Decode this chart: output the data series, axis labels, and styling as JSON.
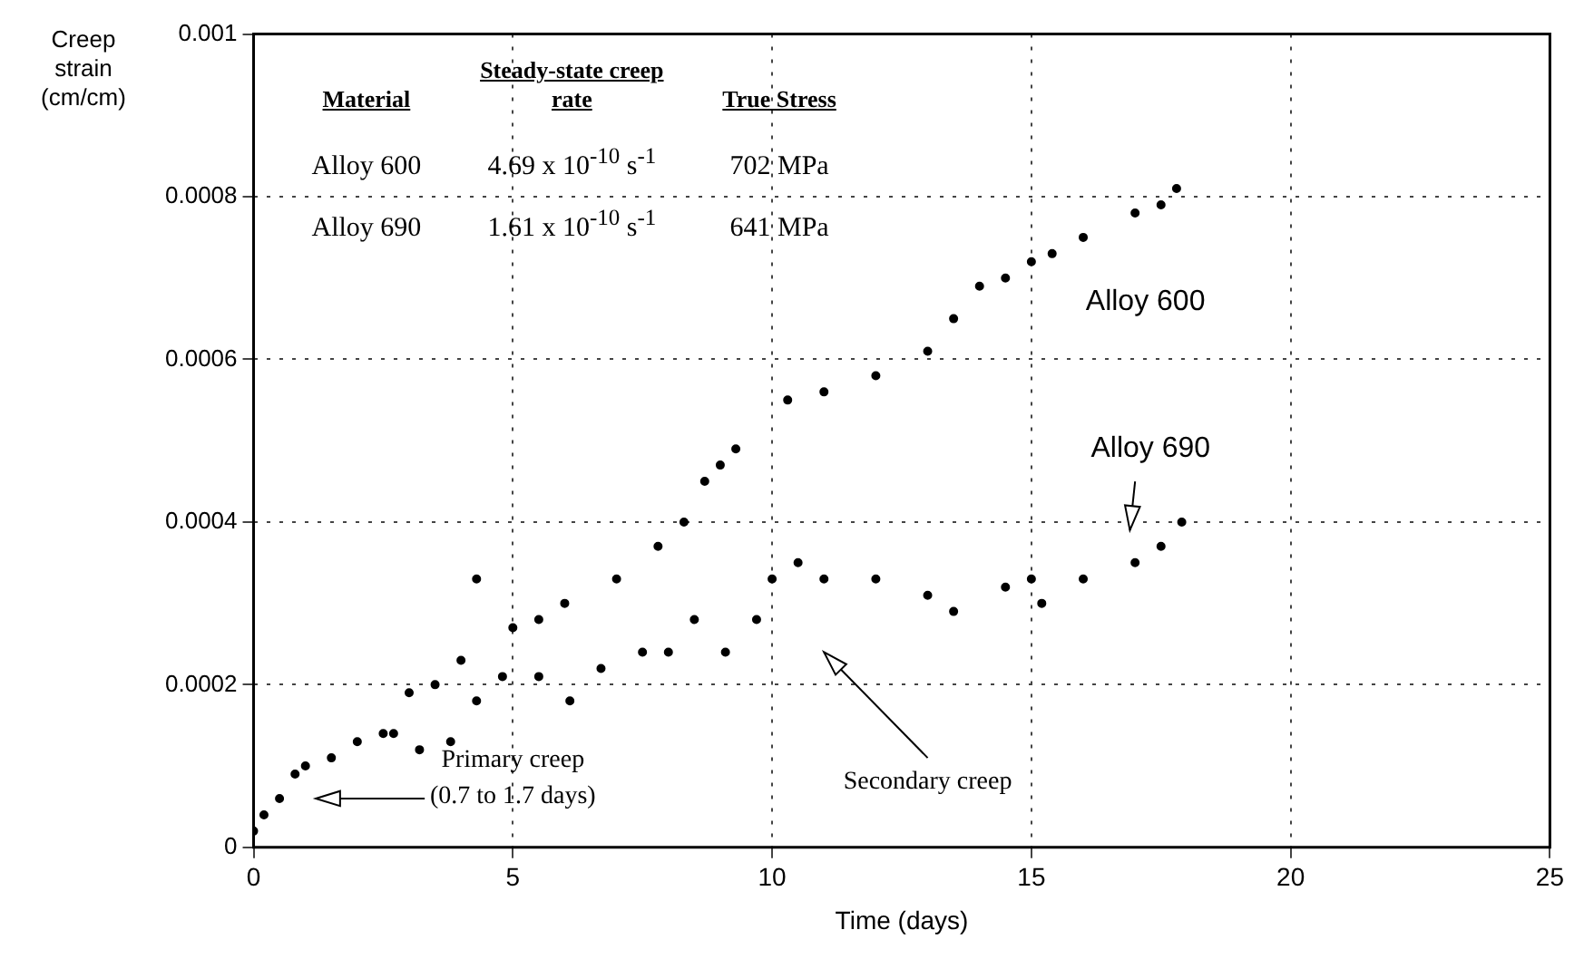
{
  "chart_data": {
    "type": "scatter",
    "xlabel": "Time (days)",
    "ylabel": "Creep strain (cm/cm)",
    "xlim": [
      0,
      25
    ],
    "xticks": [
      0,
      5,
      10,
      15,
      20,
      25
    ],
    "ylim": [
      0,
      0.001
    ],
    "yticks": [
      0,
      0.0002,
      0.0004,
      0.0006,
      0.0008,
      0.001
    ],
    "grid": true,
    "legend": false,
    "marker": "circle",
    "series": [
      {
        "name": "Alloy 600",
        "color": "#000000",
        "x": [
          0,
          0.5,
          0.8,
          1.5,
          2.5,
          3,
          3.5,
          4,
          4.3,
          5,
          5.5,
          6,
          7,
          7.8,
          8.3,
          8.7,
          9,
          9.3,
          10.3,
          11,
          12,
          13,
          13.5,
          14,
          14.5,
          15,
          15.4,
          16,
          17,
          17.5,
          17.8
        ],
        "values": [
          2e-05,
          6e-05,
          9e-05,
          0.00011,
          0.00014,
          0.00019,
          0.0002,
          0.00023,
          0.00033,
          0.00027,
          0.00028,
          0.0003,
          0.00033,
          0.00037,
          0.0004,
          0.00045,
          0.00047,
          0.00049,
          0.00055,
          0.00056,
          0.00058,
          0.00061,
          0.00065,
          0.00069,
          0.0007,
          0.00072,
          0.00073,
          0.00075,
          0.00078,
          0.00079,
          0.00081
        ]
      },
      {
        "name": "Alloy 690",
        "color": "#000000",
        "x": [
          0.2,
          1,
          2,
          2.7,
          3.2,
          3.8,
          4.3,
          4.8,
          5.5,
          6.1,
          6.7,
          7.5,
          8,
          8.5,
          9.1,
          9.7,
          10,
          10.5,
          11,
          12,
          13,
          13.5,
          14.5,
          15,
          15.2,
          16,
          17,
          17.5,
          17.9
        ],
        "values": [
          4e-05,
          0.0001,
          0.00013,
          0.00014,
          0.00012,
          0.00013,
          0.00018,
          0.00021,
          0.00021,
          0.00018,
          0.00022,
          0.00024,
          0.00024,
          0.00028,
          0.00024,
          0.00028,
          0.00033,
          0.00035,
          0.00033,
          0.00033,
          0.00031,
          0.00029,
          0.00032,
          0.00033,
          0.0003,
          0.00033,
          0.00035,
          0.00037,
          0.0004
        ]
      }
    ],
    "annotations": [
      "Material",
      "Steady-state creep rate",
      "True Stress",
      "Alloy 600",
      "4.69 x 10$^{-10}$ s$^{-1}$",
      "702 MPa",
      "Alloy 690",
      "1.61 x 10$^{-10}$ s$^{-1}$",
      "641 MPa",
      "Primary creep (0.7 to 1.7 days)",
      "Secondary creep"
    ]
  }
}
